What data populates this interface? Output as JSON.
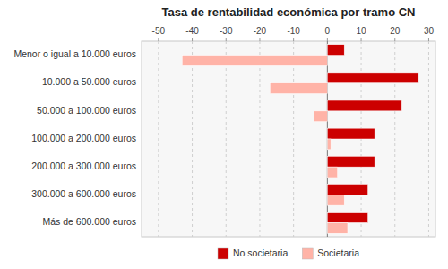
{
  "chart_data": {
    "type": "bar",
    "orientation": "horizontal",
    "title": "Tasa de rentabilidad económica por tramo CN",
    "categories": [
      "Menor o igual a 10.000 euros",
      "10.000 a 50.000 euros",
      "50.000 a 100.000 euros",
      "100.000 a 200.000 euros",
      "200.000 a 300.000 euros",
      "300.000 a 600.000 euros",
      "Más de 600.000 euros"
    ],
    "series": [
      {
        "name": "No societaria",
        "color": "#cc0000",
        "values": [
          5,
          27,
          22,
          14,
          14,
          12,
          12
        ]
      },
      {
        "name": "Societaria",
        "color": "#ffb3a7",
        "values": [
          -43,
          -17,
          -4,
          1,
          3,
          5,
          6
        ]
      }
    ],
    "xlim": [
      -55,
      32
    ],
    "xticks": [
      -50,
      -40,
      -30,
      -20,
      -10,
      0,
      10,
      20,
      30
    ],
    "grid": true,
    "legend": "bottom"
  }
}
